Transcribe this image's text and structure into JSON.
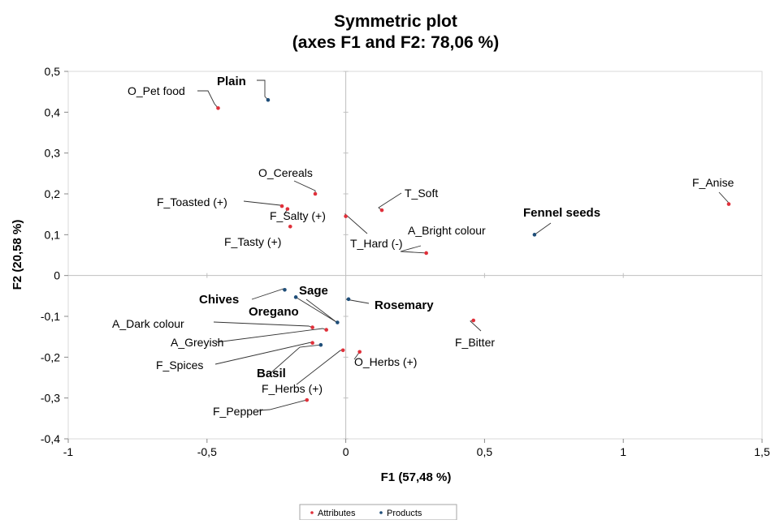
{
  "chart_data": {
    "type": "scatter",
    "title": [
      "Symmetric plot",
      "(axes F1 and F2: 78,06 %)"
    ],
    "xlabel": "F1 (57,48 %)",
    "ylabel": "F2 (20,58 %)",
    "xlim": [
      -1,
      1.5
    ],
    "ylim": [
      -0.4,
      0.5
    ],
    "xticks": [
      -1,
      -0.5,
      0,
      0.5,
      1,
      1.5
    ],
    "xtick_labels": [
      "-1",
      "-0,5",
      "0",
      "0,5",
      "1",
      "1,5"
    ],
    "yticks": [
      0.5,
      0.4,
      0.3,
      0.2,
      0.1,
      0,
      -0.1,
      -0.2,
      -0.3,
      -0.4
    ],
    "ytick_labels": [
      "0,5",
      "0,4",
      "0,3",
      "0,2",
      "0,1",
      "0",
      "-0,1",
      "-0,2",
      "-0,3",
      "-0,4"
    ],
    "legend": {
      "position": "bottom",
      "entries": [
        "Attributes",
        "Products"
      ]
    },
    "colors": {
      "Attributes": "#e0303a",
      "Products": "#1f4e79",
      "axes": "#bfbfbf",
      "frame": "#d9d9d9"
    },
    "series": [
      {
        "name": "Attributes",
        "points": [
          {
            "label": "O_Pet food",
            "x": -0.46,
            "y": 0.41
          },
          {
            "label": "O_Cereals",
            "x": -0.11,
            "y": 0.2
          },
          {
            "label": "F_Toasted (+)",
            "x": -0.23,
            "y": 0.17
          },
          {
            "label": "F_Salty (+)",
            "x": -0.21,
            "y": 0.163
          },
          {
            "label": "F_Tasty (+)",
            "x": -0.2,
            "y": 0.12
          },
          {
            "label": "T_Soft",
            "x": 0.13,
            "y": 0.16
          },
          {
            "label": "T_Hard (-)",
            "x": 0.0,
            "y": 0.145
          },
          {
            "label": "A_Bright colour",
            "x": 0.29,
            "y": 0.055
          },
          {
            "label": "F_Anise",
            "x": 1.38,
            "y": 0.175
          },
          {
            "label": "F_Bitter",
            "x": 0.46,
            "y": -0.11
          },
          {
            "label": "A_Dark colour",
            "x": -0.12,
            "y": -0.127
          },
          {
            "label": "A_Greyish",
            "x": -0.07,
            "y": -0.133
          },
          {
            "label": "F_Spices",
            "x": -0.12,
            "y": -0.165
          },
          {
            "label": "O_Herbs (+)",
            "x": 0.05,
            "y": -0.187
          },
          {
            "label": "F_Herbs (+)",
            "x": -0.01,
            "y": -0.183
          },
          {
            "label": "F_Pepper",
            "x": -0.14,
            "y": -0.305
          }
        ]
      },
      {
        "name": "Products",
        "points": [
          {
            "label": "Plain",
            "x": -0.28,
            "y": 0.43
          },
          {
            "label": "Fennel seeds",
            "x": 0.68,
            "y": 0.1
          },
          {
            "label": "Chives",
            "x": -0.22,
            "y": -0.035
          },
          {
            "label": "Sage",
            "x": -0.18,
            "y": -0.053
          },
          {
            "label": "Rosemary",
            "x": 0.01,
            "y": -0.058
          },
          {
            "label": "Oregano",
            "x": -0.03,
            "y": -0.115
          },
          {
            "label": "Basil",
            "x": -0.09,
            "y": -0.17
          }
        ]
      }
    ]
  }
}
